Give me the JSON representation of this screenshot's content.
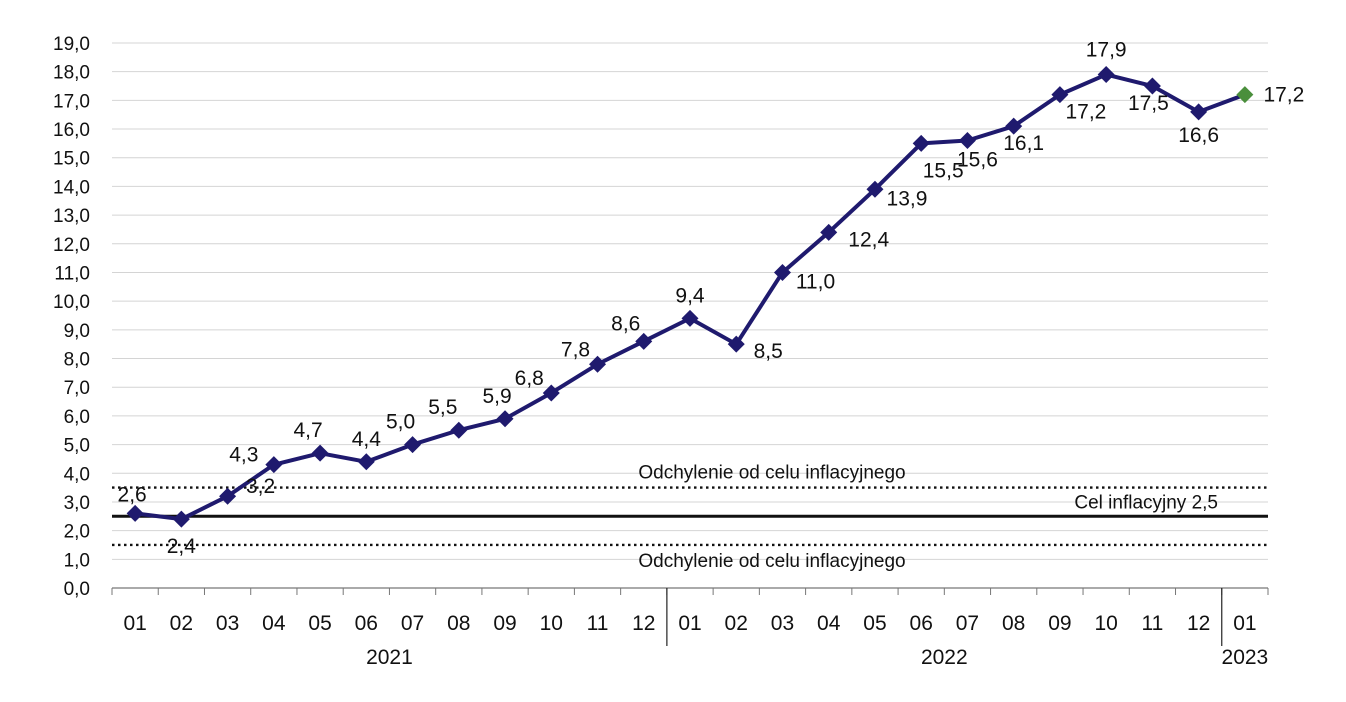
{
  "chart_data": {
    "type": "line",
    "x": [
      "01",
      "02",
      "03",
      "04",
      "05",
      "06",
      "07",
      "08",
      "09",
      "10",
      "11",
      "12",
      "01",
      "02",
      "03",
      "04",
      "05",
      "06",
      "07",
      "08",
      "09",
      "10",
      "11",
      "12",
      "01"
    ],
    "year_groups": [
      {
        "label": "2021",
        "count": 12
      },
      {
        "label": "2022",
        "count": 12
      },
      {
        "label": "2023",
        "count": 1
      }
    ],
    "series": [
      {
        "values": [
          2.6,
          2.4,
          3.2,
          4.3,
          4.7,
          4.4,
          5.0,
          5.5,
          5.9,
          6.8,
          7.8,
          8.6,
          9.4,
          8.5,
          11.0,
          12.4,
          13.9,
          15.5,
          15.6,
          16.1,
          17.2,
          17.9,
          17.5,
          16.6,
          17.2
        ],
        "labels": [
          "2,6",
          "2,4",
          "3,2",
          "4,3",
          "4,7",
          "4,4",
          "5,0",
          "5,5",
          "5,9",
          "6,8",
          "7,8",
          "8,6",
          "9,4",
          "8,5",
          "11,0",
          "12,4",
          "13,9",
          "15,5",
          "15,6",
          "16,1",
          "17,2",
          "17,9",
          "17,5",
          "16,6",
          "17,2"
        ],
        "color": "#1f1a6e",
        "last_point_color": "#4a8f3c"
      }
    ],
    "ylim": [
      0,
      19
    ],
    "yticks": [
      "0,0",
      "1,0",
      "2,0",
      "3,0",
      "4,0",
      "5,0",
      "6,0",
      "7,0",
      "8,0",
      "9,0",
      "10,0",
      "11,0",
      "12,0",
      "13,0",
      "14,0",
      "15,0",
      "16,0",
      "17,0",
      "18,0",
      "19,0"
    ],
    "grid": true,
    "reference_lines": [
      {
        "value": 3.5,
        "style": "dotted",
        "label": "Odchylenie od celu inflacyjnego"
      },
      {
        "value": 2.5,
        "style": "solid",
        "label": "Cel inflacyjny 2,5"
      },
      {
        "value": 1.5,
        "style": "dotted",
        "label": "Odchylenie od celu inflacyjnego"
      }
    ]
  }
}
